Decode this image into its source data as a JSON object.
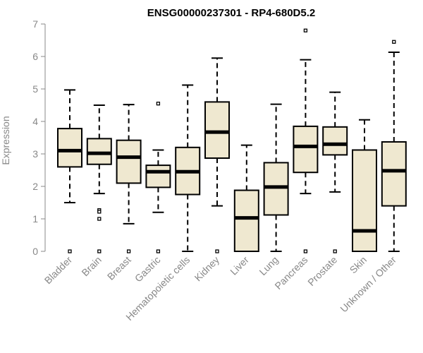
{
  "chart_data": {
    "type": "boxplot",
    "title": "ENSG00000237301 - RP4-680D5.2",
    "xlabel": "",
    "ylabel": "Expression",
    "ylim": [
      0,
      7
    ],
    "yticks": [
      0,
      1,
      2,
      3,
      4,
      5,
      6,
      7
    ],
    "colors": {
      "box_fill": "#efe8d0",
      "box_stroke": "#000000",
      "axis": "#888888"
    },
    "categories": [
      "Bladder",
      "Brain",
      "Breast",
      "Gastric",
      "Hematopoietic cells",
      "Kidney",
      "Liver",
      "Lung",
      "Pancreas",
      "Prostate",
      "Skin",
      "Unknown / Other"
    ],
    "series": [
      {
        "name": "Bladder",
        "whisker_low": 1.5,
        "q1": 2.6,
        "median": 3.1,
        "q3": 3.78,
        "whisker_high": 4.97,
        "outliers": [
          0
        ]
      },
      {
        "name": "Brain",
        "whisker_low": 1.78,
        "q1": 2.68,
        "median": 3.02,
        "q3": 3.47,
        "whisker_high": 4.5,
        "outliers": [
          1.27,
          1.22,
          1.0,
          0
        ]
      },
      {
        "name": "Breast",
        "whisker_low": 0.85,
        "q1": 2.1,
        "median": 2.9,
        "q3": 3.42,
        "whisker_high": 4.52,
        "outliers": [
          0
        ]
      },
      {
        "name": "Gastric",
        "whisker_low": 1.2,
        "q1": 1.97,
        "median": 2.45,
        "q3": 2.65,
        "whisker_high": 3.12,
        "outliers": [
          4.55,
          0
        ]
      },
      {
        "name": "Hematopoietic cells",
        "whisker_low": 0,
        "q1": 1.75,
        "median": 2.45,
        "q3": 3.2,
        "whisker_high": 5.12,
        "outliers": []
      },
      {
        "name": "Kidney",
        "whisker_low": 1.4,
        "q1": 2.87,
        "median": 3.67,
        "q3": 4.6,
        "whisker_high": 5.95,
        "outliers": [
          0
        ]
      },
      {
        "name": "Liver",
        "whisker_low": 0,
        "q1": 0,
        "median": 1.03,
        "q3": 1.88,
        "whisker_high": 3.27,
        "outliers": []
      },
      {
        "name": "Lung",
        "whisker_low": 0,
        "q1": 1.12,
        "median": 1.98,
        "q3": 2.73,
        "whisker_high": 4.53,
        "outliers": []
      },
      {
        "name": "Pancreas",
        "whisker_low": 1.78,
        "q1": 2.43,
        "median": 3.23,
        "q3": 3.85,
        "whisker_high": 5.9,
        "outliers": [
          6.8,
          0
        ]
      },
      {
        "name": "Prostate",
        "whisker_low": 1.83,
        "q1": 2.97,
        "median": 3.3,
        "q3": 3.83,
        "whisker_high": 4.9,
        "outliers": [
          0
        ]
      },
      {
        "name": "Skin",
        "whisker_low": 0,
        "q1": 0,
        "median": 0.63,
        "q3": 3.12,
        "whisker_high": 4.05,
        "outliers": []
      },
      {
        "name": "Unknown / Other",
        "whisker_low": 0,
        "q1": 1.4,
        "median": 2.48,
        "q3": 3.37,
        "whisker_high": 6.13,
        "outliers": [
          6.45
        ]
      }
    ]
  }
}
